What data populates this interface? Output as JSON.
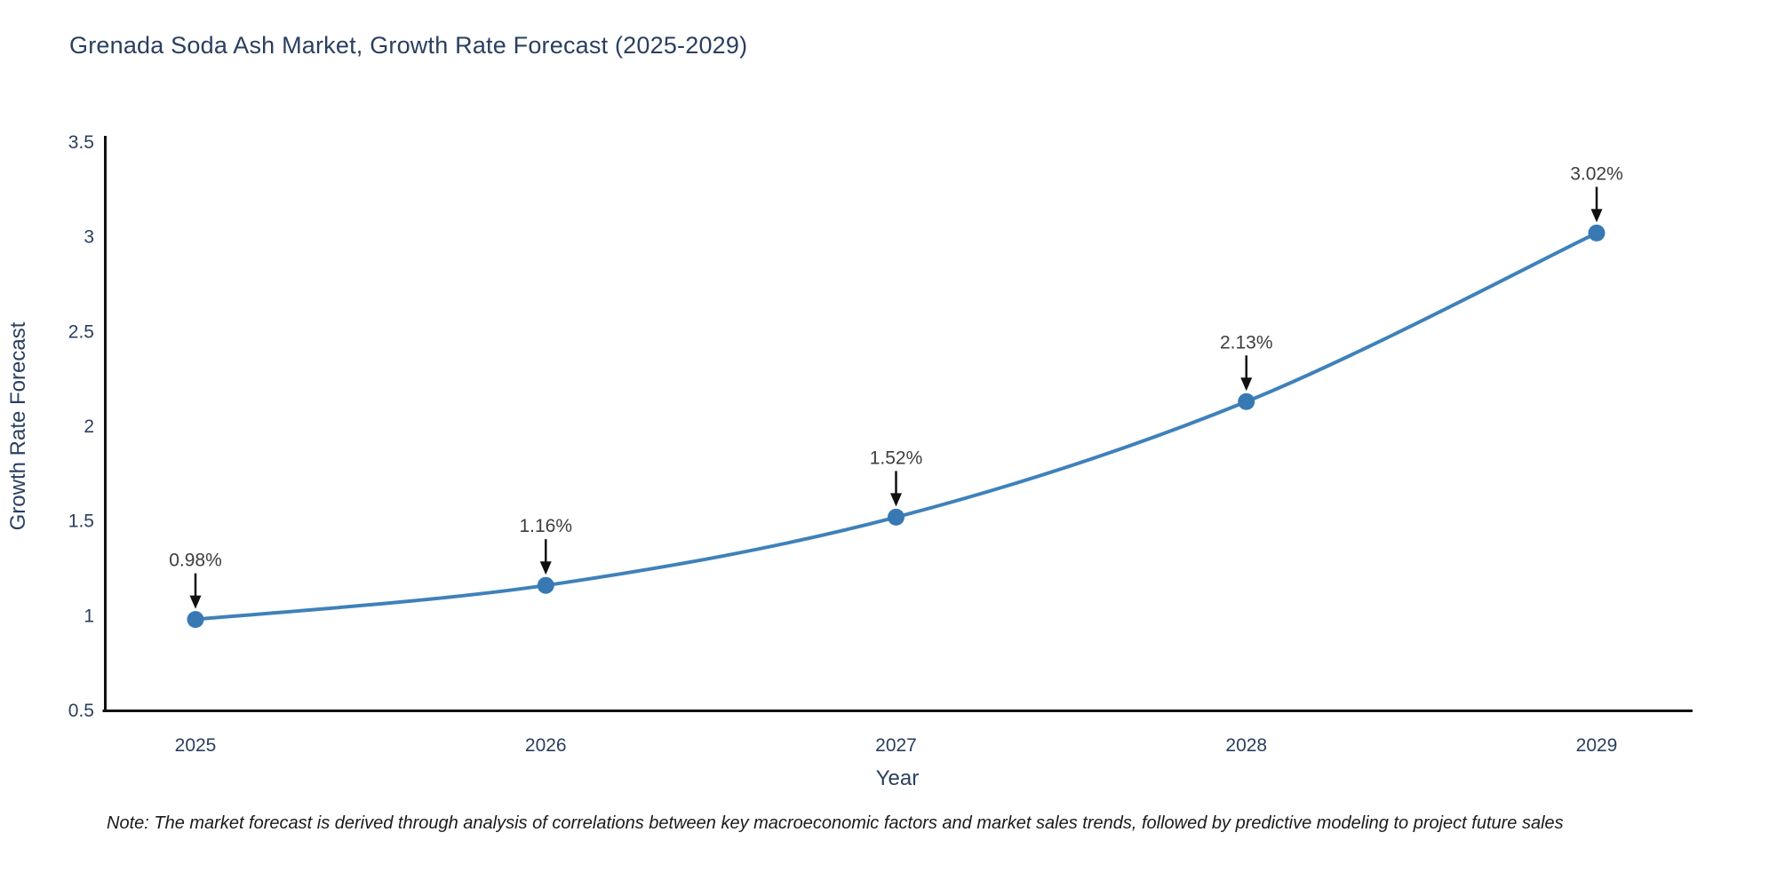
{
  "title": "Grenada Soda Ash Market, Growth Rate Forecast (2025-2029)",
  "note": "Note: The market forecast is derived through analysis of correlations between key macroeconomic factors and market sales trends, followed by predictive modeling to project future sales",
  "chart_data": {
    "type": "line",
    "title": "Grenada Soda Ash Market, Growth Rate Forecast (2025-2029)",
    "xlabel": "Year",
    "ylabel": "Growth Rate Forecast",
    "x": [
      2025,
      2026,
      2027,
      2028,
      2029
    ],
    "y": [
      0.98,
      1.16,
      1.52,
      2.13,
      3.02
    ],
    "point_labels": [
      "0.98%",
      "1.16%",
      "1.52%",
      "2.13%",
      "3.02%"
    ],
    "x_tick_labels": [
      "2025",
      "2026",
      "2027",
      "2028",
      "2029"
    ],
    "y_tick_labels": [
      "0.5",
      "1",
      "1.5",
      "2",
      "2.5",
      "3",
      "3.5"
    ],
    "yticks": [
      0.5,
      1,
      1.5,
      2,
      2.5,
      3,
      3.5
    ],
    "ylim": [
      0.5,
      3.5
    ],
    "grid": false,
    "legend": "none",
    "line_shape": "spline",
    "colors": {
      "line": "#3f81ba",
      "marker": "#3879b4",
      "axis": "#111111",
      "tick_text": "#2a3f5f",
      "annotation_text": "#3d3d3d",
      "arrow": "#111111"
    }
  }
}
